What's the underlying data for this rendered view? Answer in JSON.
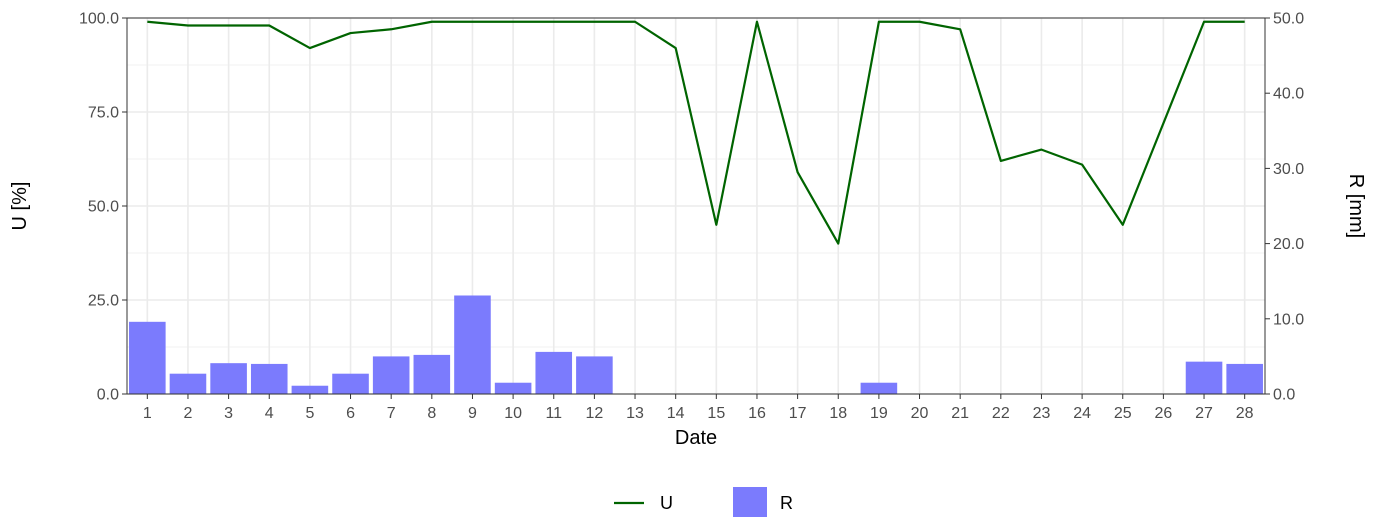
{
  "chart_data": {
    "type": "bar",
    "xlabel": "Date",
    "ylabel_left": "U [%]",
    "ylabel_right": "R [mm]",
    "x": [
      1,
      2,
      3,
      4,
      5,
      6,
      7,
      8,
      9,
      10,
      11,
      12,
      13,
      14,
      15,
      16,
      17,
      18,
      19,
      20,
      21,
      22,
      23,
      24,
      25,
      26,
      27,
      28
    ],
    "ylim_left": [
      0,
      100
    ],
    "ylim_right": [
      0,
      50
    ],
    "yticks_left": [
      "0.0",
      "25.0",
      "50.0",
      "75.0",
      "100.0"
    ],
    "yticks_right": [
      "0.0",
      "10.0",
      "20.0",
      "30.0",
      "40.0",
      "50.0"
    ],
    "grid": true,
    "legend_position": "bottom",
    "series": [
      {
        "name": "U",
        "type": "line",
        "axis": "left",
        "color": "#006400",
        "values": [
          99,
          98,
          98,
          98,
          92,
          96,
          97,
          99,
          99,
          99,
          99,
          99,
          99,
          92,
          45,
          99,
          59,
          40,
          99,
          99,
          97,
          62,
          65,
          61,
          45,
          72,
          99,
          99
        ]
      },
      {
        "name": "R",
        "type": "bar",
        "axis": "right",
        "color": "#7b7bfd",
        "values": [
          9.6,
          2.7,
          4.1,
          4.0,
          1.1,
          2.7,
          5.0,
          5.2,
          13.1,
          1.5,
          5.6,
          5.0,
          0,
          0,
          0,
          0,
          0,
          0,
          1.5,
          0,
          0,
          0,
          0,
          0,
          0,
          0,
          4.3,
          4.0
        ]
      }
    ]
  }
}
